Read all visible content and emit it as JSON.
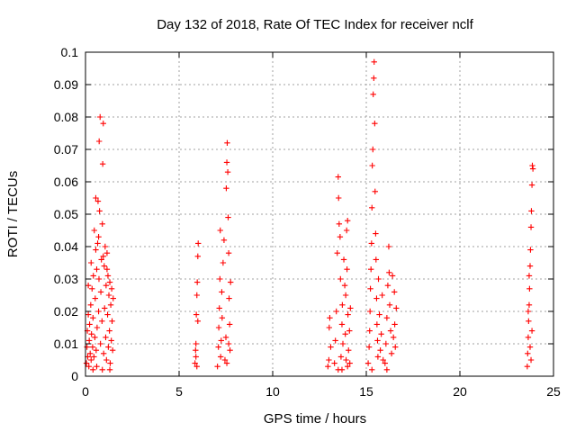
{
  "chart_data": {
    "type": "scatter",
    "title": "Day 132 of 2018, Rate Of TEC Index for receiver nclf",
    "xlabel": "GPS time / hours",
    "ylabel": "ROTI / TECUs",
    "xlim": [
      0,
      25
    ],
    "ylim": [
      0,
      0.1
    ],
    "x_ticks": [
      0,
      5,
      10,
      15,
      20,
      25
    ],
    "x_tick_labels": [
      "0",
      "5",
      "10",
      "15",
      "20",
      "25"
    ],
    "y_ticks": [
      0,
      0.01,
      0.02,
      0.03,
      0.04,
      0.05,
      0.06,
      0.07,
      0.08,
      0.09,
      0.1
    ],
    "y_tick_labels": [
      "0",
      "0.01",
      "0.02",
      "0.03",
      "0.04",
      "0.05",
      "0.06",
      "0.07",
      "0.08",
      "0.09",
      "0.1"
    ],
    "grid": true,
    "marker": "+",
    "color": "#ff0000",
    "series": [
      {
        "name": "ROTI",
        "points": [
          [
            0.05,
            0.004
          ],
          [
            0.08,
            0.009
          ],
          [
            0.1,
            0.014
          ],
          [
            0.12,
            0.006
          ],
          [
            0.15,
            0.019
          ],
          [
            0.18,
            0.003
          ],
          [
            0.2,
            0.011
          ],
          [
            0.22,
            0.016
          ],
          [
            0.25,
            0.007
          ],
          [
            0.28,
            0.022
          ],
          [
            0.3,
            0.005
          ],
          [
            0.32,
            0.013
          ],
          [
            0.35,
            0.027
          ],
          [
            0.38,
            0.009
          ],
          [
            0.4,
            0.018
          ],
          [
            0.42,
            0.031
          ],
          [
            0.45,
            0.006
          ],
          [
            0.47,
            0.045
          ],
          [
            0.5,
            0.012
          ],
          [
            0.52,
            0.024
          ],
          [
            0.55,
            0.055
          ],
          [
            0.57,
            0.008
          ],
          [
            0.6,
            0.033
          ],
          [
            0.62,
            0.015
          ],
          [
            0.65,
            0.041
          ],
          [
            0.67,
            0.054
          ],
          [
            0.7,
            0.02
          ],
          [
            0.72,
            0.03
          ],
          [
            0.73,
            0.0725
          ],
          [
            0.75,
            0.051
          ],
          [
            0.78,
            0.08
          ],
          [
            0.8,
            0.01
          ],
          [
            0.82,
            0.026
          ],
          [
            0.85,
            0.036
          ],
          [
            0.88,
            0.017
          ],
          [
            0.9,
            0.047
          ],
          [
            0.92,
            0.0655
          ],
          [
            0.95,
            0.078
          ],
          [
            0.97,
            0.007
          ],
          [
            1.0,
            0.034
          ],
          [
            1.02,
            0.021
          ],
          [
            1.05,
            0.04
          ],
          [
            1.08,
            0.012
          ],
          [
            1.1,
            0.028
          ],
          [
            1.12,
            0.005
          ],
          [
            1.15,
            0.038
          ],
          [
            1.18,
            0.019
          ],
          [
            1.2,
            0.031
          ],
          [
            1.22,
            0.009
          ],
          [
            1.25,
            0.025
          ],
          [
            1.28,
            0.014
          ],
          [
            1.3,
            0.029
          ],
          [
            1.32,
            0.004
          ],
          [
            1.35,
            0.022
          ],
          [
            1.38,
            0.011
          ],
          [
            1.4,
            0.027
          ],
          [
            1.42,
            0.017
          ],
          [
            1.45,
            0.008
          ],
          [
            1.48,
            0.024
          ],
          [
            0.15,
            0.028
          ],
          [
            0.3,
            0.035
          ],
          [
            0.55,
            0.039
          ],
          [
            0.7,
            0.043
          ],
          [
            0.95,
            0.037
          ],
          [
            1.15,
            0.033
          ],
          [
            0.4,
            0.002
          ],
          [
            0.6,
            0.003
          ],
          [
            0.9,
            0.002
          ],
          [
            1.3,
            0.002
          ],
          [
            5.85,
            0.004
          ],
          [
            5.88,
            0.008
          ],
          [
            5.9,
            0.006
          ],
          [
            5.92,
            0.019
          ],
          [
            5.95,
            0.025
          ],
          [
            5.97,
            0.029
          ],
          [
            6.0,
            0.037
          ],
          [
            6.02,
            0.041
          ],
          [
            5.9,
            0.01
          ],
          [
            5.95,
            0.003
          ],
          [
            6.0,
            0.017
          ],
          [
            7.05,
            0.003
          ],
          [
            7.1,
            0.009
          ],
          [
            7.12,
            0.015
          ],
          [
            7.15,
            0.021
          ],
          [
            7.18,
            0.03
          ],
          [
            7.2,
            0.045
          ],
          [
            7.22,
            0.006
          ],
          [
            7.25,
            0.011
          ],
          [
            7.28,
            0.026
          ],
          [
            7.3,
            0.018
          ],
          [
            7.35,
            0.035
          ],
          [
            7.4,
            0.042
          ],
          [
            7.45,
            0.005
          ],
          [
            7.5,
            0.012
          ],
          [
            7.52,
            0.058
          ],
          [
            7.55,
            0.066
          ],
          [
            7.57,
            0.072
          ],
          [
            7.6,
            0.063
          ],
          [
            7.62,
            0.049
          ],
          [
            7.65,
            0.038
          ],
          [
            7.67,
            0.024
          ],
          [
            7.7,
            0.016
          ],
          [
            7.72,
            0.008
          ],
          [
            7.75,
            0.029
          ],
          [
            7.55,
            0.004
          ],
          [
            7.65,
            0.01
          ],
          [
            12.95,
            0.003
          ],
          [
            13.0,
            0.005
          ],
          [
            13.02,
            0.015
          ],
          [
            13.05,
            0.018
          ],
          [
            13.1,
            0.009
          ],
          [
            13.3,
            0.004
          ],
          [
            13.35,
            0.011
          ],
          [
            13.4,
            0.02
          ],
          [
            13.45,
            0.038
          ],
          [
            13.5,
            0.0615
          ],
          [
            13.52,
            0.055
          ],
          [
            13.55,
            0.047
          ],
          [
            13.6,
            0.043
          ],
          [
            13.62,
            0.03
          ],
          [
            13.65,
            0.006
          ],
          [
            13.7,
            0.016
          ],
          [
            13.72,
            0.022
          ],
          [
            13.75,
            0.01
          ],
          [
            13.8,
            0.036
          ],
          [
            13.85,
            0.028
          ],
          [
            13.88,
            0.013
          ],
          [
            13.9,
            0.025
          ],
          [
            13.92,
            0.005
          ],
          [
            13.95,
            0.045
          ],
          [
            13.97,
            0.033
          ],
          [
            14.0,
            0.048
          ],
          [
            14.02,
            0.019
          ],
          [
            14.05,
            0.008
          ],
          [
            14.1,
            0.014
          ],
          [
            14.12,
            0.004
          ],
          [
            14.15,
            0.021
          ],
          [
            13.5,
            0.002
          ],
          [
            13.7,
            0.002
          ],
          [
            14.0,
            0.003
          ],
          [
            15.1,
            0.004
          ],
          [
            15.15,
            0.009
          ],
          [
            15.18,
            0.014
          ],
          [
            15.2,
            0.02
          ],
          [
            15.22,
            0.027
          ],
          [
            15.25,
            0.033
          ],
          [
            15.28,
            0.041
          ],
          [
            15.3,
            0.052
          ],
          [
            15.32,
            0.065
          ],
          [
            15.35,
            0.07
          ],
          [
            15.37,
            0.087
          ],
          [
            15.4,
            0.092
          ],
          [
            15.42,
            0.097
          ],
          [
            15.45,
            0.078
          ],
          [
            15.47,
            0.057
          ],
          [
            15.5,
            0.044
          ],
          [
            15.52,
            0.036
          ],
          [
            15.55,
            0.024
          ],
          [
            15.57,
            0.016
          ],
          [
            15.6,
            0.011
          ],
          [
            15.62,
            0.006
          ],
          [
            15.65,
            0.03
          ],
          [
            15.7,
            0.019
          ],
          [
            15.75,
            0.008
          ],
          [
            15.8,
            0.013
          ],
          [
            15.85,
            0.025
          ],
          [
            15.9,
            0.005
          ],
          [
            16.0,
            0.004
          ],
          [
            16.05,
            0.01
          ],
          [
            16.1,
            0.018
          ],
          [
            16.15,
            0.028
          ],
          [
            16.2,
            0.04
          ],
          [
            16.22,
            0.032
          ],
          [
            16.25,
            0.022
          ],
          [
            16.3,
            0.014
          ],
          [
            16.35,
            0.007
          ],
          [
            16.4,
            0.031
          ],
          [
            16.45,
            0.012
          ],
          [
            16.5,
            0.026
          ],
          [
            16.52,
            0.016
          ],
          [
            16.55,
            0.009
          ],
          [
            16.6,
            0.021
          ],
          [
            15.3,
            0.002
          ],
          [
            16.1,
            0.002
          ],
          [
            23.6,
            0.003
          ],
          [
            23.62,
            0.007
          ],
          [
            23.65,
            0.012
          ],
          [
            23.67,
            0.017
          ],
          [
            23.7,
            0.022
          ],
          [
            23.72,
            0.027
          ],
          [
            23.75,
            0.034
          ],
          [
            23.77,
            0.039
          ],
          [
            23.8,
            0.046
          ],
          [
            23.82,
            0.051
          ],
          [
            23.85,
            0.059
          ],
          [
            23.87,
            0.065
          ],
          [
            23.9,
            0.064
          ],
          [
            23.75,
            0.009
          ],
          [
            23.8,
            0.005
          ],
          [
            23.85,
            0.014
          ],
          [
            23.7,
            0.031
          ],
          [
            23.65,
            0.02
          ]
        ]
      }
    ]
  }
}
